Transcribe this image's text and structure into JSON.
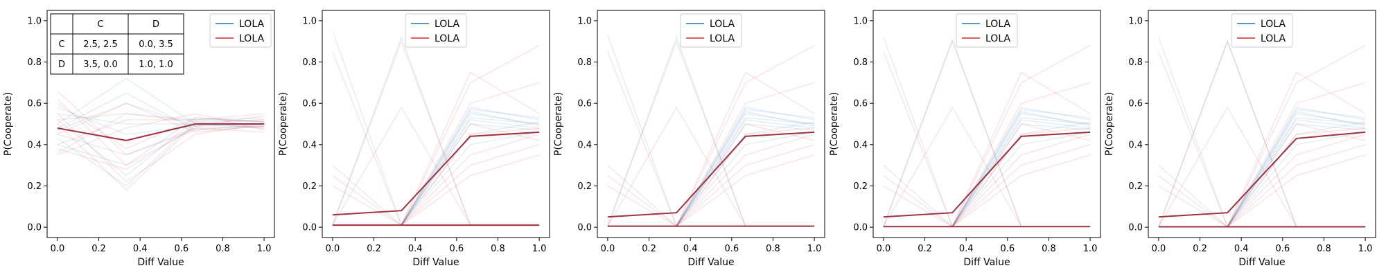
{
  "figure": {
    "panel_count": 5
  },
  "payoff_table": {
    "header": [
      "",
      "C",
      "D"
    ],
    "rows": [
      [
        "C",
        "2.5, 2.5",
        "0.0, 3.5"
      ],
      [
        "D",
        "3.5, 0.0",
        "1.0, 1.0"
      ]
    ]
  },
  "colors": {
    "blue": "#1f77b4",
    "red": "#d62728",
    "mean": "#9e3040",
    "axis": "#000000",
    "background": "#ffffff"
  },
  "chart_data": [
    {
      "type": "line",
      "xlabel": "Diff Value",
      "ylabel": "P(Cooperate)",
      "xlim": [
        -0.05,
        1.05
      ],
      "ylim": [
        -0.05,
        1.05
      ],
      "xticks": [
        "0.0",
        "0.2",
        "0.4",
        "0.6",
        "0.8",
        "1.0"
      ],
      "yticks": [
        "0.0",
        "0.2",
        "0.4",
        "0.6",
        "0.8",
        "1.0"
      ],
      "grid": false,
      "legend": {
        "placement": "top-right",
        "entries": [
          {
            "label": "LOLA",
            "color": "#1f77b4"
          },
          {
            "label": "LOLA",
            "color": "#d62728"
          }
        ]
      },
      "x": [
        0,
        0.333,
        0.667,
        1.0
      ],
      "mean_line": [
        0.48,
        0.42,
        0.5,
        0.5
      ],
      "faint_blue": [
        [
          0.5,
          0.72,
          0.5,
          0.5
        ],
        [
          0.45,
          0.35,
          0.48,
          0.49
        ],
        [
          0.52,
          0.25,
          0.52,
          0.51
        ],
        [
          0.47,
          0.6,
          0.49,
          0.5
        ],
        [
          0.43,
          0.2,
          0.51,
          0.52
        ],
        [
          0.55,
          0.5,
          0.5,
          0.48
        ],
        [
          0.48,
          0.65,
          0.47,
          0.49
        ],
        [
          0.4,
          0.3,
          0.53,
          0.51
        ],
        [
          0.58,
          0.45,
          0.49,
          0.5
        ],
        [
          0.36,
          0.55,
          0.52,
          0.53
        ]
      ],
      "faint_red": [
        [
          0.62,
          0.3,
          0.48,
          0.46
        ],
        [
          0.4,
          0.52,
          0.52,
          0.55
        ],
        [
          0.55,
          0.22,
          0.45,
          0.5
        ],
        [
          0.35,
          0.48,
          0.55,
          0.47
        ],
        [
          0.5,
          0.18,
          0.5,
          0.52
        ],
        [
          0.45,
          0.6,
          0.46,
          0.49
        ],
        [
          0.6,
          0.38,
          0.53,
          0.51
        ],
        [
          0.38,
          0.28,
          0.49,
          0.54
        ],
        [
          0.52,
          0.55,
          0.51,
          0.48
        ],
        [
          0.66,
          0.35,
          0.47,
          0.5
        ]
      ],
      "payoff_table": true
    },
    {
      "type": "line",
      "xlabel": "Diff Value",
      "ylabel": "P(Cooperate)",
      "xlim": [
        -0.05,
        1.05
      ],
      "ylim": [
        -0.05,
        1.05
      ],
      "xticks": [
        "0.0",
        "0.2",
        "0.4",
        "0.6",
        "0.8",
        "1.0"
      ],
      "yticks": [
        "0.0",
        "0.2",
        "0.4",
        "0.6",
        "0.8",
        "1.0"
      ],
      "grid": false,
      "legend": {
        "placement": "top-center",
        "entries": [
          {
            "label": "LOLA",
            "color": "#1f77b4"
          },
          {
            "label": "LOLA",
            "color": "#d62728"
          }
        ]
      },
      "x": [
        0,
        0.333,
        0.667,
        1.0
      ],
      "mean_line": [
        0.06,
        0.08,
        0.44,
        0.46
      ],
      "mean_flat": [
        0.01,
        0.01,
        0.01,
        0.01
      ],
      "faint_blue": [
        [
          0.01,
          0.01,
          0.55,
          0.5
        ],
        [
          0.01,
          0.01,
          0.52,
          0.48
        ],
        [
          0.01,
          0.01,
          0.58,
          0.52
        ],
        [
          0.01,
          0.01,
          0.5,
          0.47
        ],
        [
          0.95,
          0.01,
          0.56,
          0.49
        ],
        [
          0.01,
          0.92,
          0.01,
          0.01
        ],
        [
          0.01,
          0.01,
          0.45,
          0.51
        ],
        [
          0.3,
          0.01,
          0.53,
          0.5
        ],
        [
          0.01,
          0.01,
          0.4,
          0.46
        ],
        [
          0.01,
          0.01,
          0.57,
          0.53
        ]
      ],
      "faint_red": [
        [
          0.01,
          0.01,
          0.75,
          0.55
        ],
        [
          0.85,
          0.01,
          0.7,
          0.88
        ],
        [
          0.01,
          0.9,
          0.01,
          0.01
        ],
        [
          0.01,
          0.01,
          0.35,
          0.45
        ],
        [
          0.2,
          0.01,
          0.5,
          0.42
        ],
        [
          0.01,
          0.58,
          0.01,
          0.01
        ],
        [
          0.01,
          0.01,
          0.3,
          0.4
        ],
        [
          0.01,
          0.01,
          0.45,
          0.48
        ],
        [
          0.25,
          0.01,
          0.6,
          0.7
        ],
        [
          0.01,
          0.01,
          0.25,
          0.35
        ]
      ],
      "payoff_table": false
    },
    {
      "type": "line",
      "xlabel": "Diff Value",
      "ylabel": "P(Cooperate)",
      "xlim": [
        -0.05,
        1.05
      ],
      "ylim": [
        -0.05,
        1.05
      ],
      "xticks": [
        "0.0",
        "0.2",
        "0.4",
        "0.6",
        "0.8",
        "1.0"
      ],
      "yticks": [
        "0.0",
        "0.2",
        "0.4",
        "0.6",
        "0.8",
        "1.0"
      ],
      "grid": false,
      "legend": {
        "placement": "top-center",
        "entries": [
          {
            "label": "LOLA",
            "color": "#1f77b4"
          },
          {
            "label": "LOLA",
            "color": "#d62728"
          }
        ]
      },
      "x": [
        0,
        0.333,
        0.667,
        1.0
      ],
      "mean_line": [
        0.05,
        0.07,
        0.44,
        0.46
      ],
      "mean_flat": [
        0.005,
        0.005,
        0.005,
        0.005
      ],
      "faint_blue": [
        [
          0.005,
          0.005,
          0.55,
          0.5
        ],
        [
          0.005,
          0.005,
          0.52,
          0.48
        ],
        [
          0.005,
          0.005,
          0.58,
          0.52
        ],
        [
          0.005,
          0.005,
          0.5,
          0.47
        ],
        [
          0.93,
          0.005,
          0.56,
          0.49
        ],
        [
          0.005,
          0.92,
          0.005,
          0.005
        ],
        [
          0.005,
          0.005,
          0.45,
          0.51
        ],
        [
          0.3,
          0.005,
          0.53,
          0.5
        ],
        [
          0.005,
          0.005,
          0.4,
          0.46
        ],
        [
          0.005,
          0.005,
          0.57,
          0.53
        ]
      ],
      "faint_red": [
        [
          0.005,
          0.005,
          0.75,
          0.55
        ],
        [
          0.85,
          0.005,
          0.7,
          0.88
        ],
        [
          0.005,
          0.9,
          0.005,
          0.005
        ],
        [
          0.005,
          0.005,
          0.35,
          0.45
        ],
        [
          0.2,
          0.005,
          0.5,
          0.42
        ],
        [
          0.005,
          0.58,
          0.005,
          0.005
        ],
        [
          0.005,
          0.005,
          0.3,
          0.4
        ],
        [
          0.005,
          0.005,
          0.45,
          0.48
        ],
        [
          0.25,
          0.005,
          0.6,
          0.7
        ],
        [
          0.005,
          0.005,
          0.25,
          0.35
        ]
      ],
      "payoff_table": false
    },
    {
      "type": "line",
      "xlabel": "Diff Value",
      "ylabel": "P(Cooperate)",
      "xlim": [
        -0.05,
        1.05
      ],
      "ylim": [
        -0.05,
        1.05
      ],
      "xticks": [
        "0.0",
        "0.2",
        "0.4",
        "0.6",
        "0.8",
        "1.0"
      ],
      "yticks": [
        "0.0",
        "0.2",
        "0.4",
        "0.6",
        "0.8",
        "1.0"
      ],
      "grid": false,
      "legend": {
        "placement": "top-center",
        "entries": [
          {
            "label": "LOLA",
            "color": "#1f77b4"
          },
          {
            "label": "LOLA",
            "color": "#d62728"
          }
        ]
      },
      "x": [
        0,
        0.333,
        0.667,
        1.0
      ],
      "mean_line": [
        0.05,
        0.07,
        0.44,
        0.46
      ],
      "mean_flat": [
        0.003,
        0.003,
        0.003,
        0.003
      ],
      "faint_blue": [
        [
          0.003,
          0.003,
          0.55,
          0.5
        ],
        [
          0.003,
          0.003,
          0.52,
          0.48
        ],
        [
          0.003,
          0.003,
          0.58,
          0.52
        ],
        [
          0.003,
          0.003,
          0.5,
          0.47
        ],
        [
          0.92,
          0.003,
          0.56,
          0.49
        ],
        [
          0.003,
          0.91,
          0.003,
          0.003
        ],
        [
          0.003,
          0.003,
          0.45,
          0.51
        ],
        [
          0.3,
          0.003,
          0.53,
          0.5
        ],
        [
          0.003,
          0.003,
          0.4,
          0.46
        ],
        [
          0.003,
          0.003,
          0.57,
          0.53
        ]
      ],
      "faint_red": [
        [
          0.003,
          0.003,
          0.75,
          0.55
        ],
        [
          0.85,
          0.003,
          0.7,
          0.88
        ],
        [
          0.003,
          0.9,
          0.003,
          0.003
        ],
        [
          0.003,
          0.003,
          0.35,
          0.45
        ],
        [
          0.2,
          0.003,
          0.5,
          0.42
        ],
        [
          0.003,
          0.58,
          0.003,
          0.003
        ],
        [
          0.003,
          0.003,
          0.3,
          0.4
        ],
        [
          0.003,
          0.003,
          0.45,
          0.48
        ],
        [
          0.25,
          0.003,
          0.6,
          0.7
        ],
        [
          0.003,
          0.003,
          0.25,
          0.35
        ]
      ],
      "payoff_table": false
    },
    {
      "type": "line",
      "xlabel": "Diff Value",
      "ylabel": "P(Cooperate)",
      "xlim": [
        -0.05,
        1.05
      ],
      "ylim": [
        -0.05,
        1.05
      ],
      "xticks": [
        "0.0",
        "0.2",
        "0.4",
        "0.6",
        "0.8",
        "1.0"
      ],
      "yticks": [
        "0.0",
        "0.2",
        "0.4",
        "0.6",
        "0.8",
        "1.0"
      ],
      "grid": false,
      "legend": {
        "placement": "top-center",
        "entries": [
          {
            "label": "LOLA",
            "color": "#1f77b4"
          },
          {
            "label": "LOLA",
            "color": "#d62728"
          }
        ]
      },
      "x": [
        0,
        0.333,
        0.667,
        1.0
      ],
      "mean_line": [
        0.05,
        0.07,
        0.43,
        0.46
      ],
      "mean_flat": [
        0.002,
        0.002,
        0.002,
        0.002
      ],
      "faint_blue": [
        [
          0.002,
          0.002,
          0.55,
          0.5
        ],
        [
          0.002,
          0.002,
          0.52,
          0.48
        ],
        [
          0.002,
          0.002,
          0.58,
          0.52
        ],
        [
          0.002,
          0.002,
          0.5,
          0.47
        ],
        [
          0.92,
          0.002,
          0.56,
          0.49
        ],
        [
          0.002,
          0.9,
          0.002,
          0.002
        ],
        [
          0.002,
          0.002,
          0.45,
          0.51
        ],
        [
          0.3,
          0.002,
          0.53,
          0.5
        ],
        [
          0.002,
          0.002,
          0.4,
          0.46
        ],
        [
          0.002,
          0.002,
          0.57,
          0.53
        ]
      ],
      "faint_red": [
        [
          0.002,
          0.002,
          0.75,
          0.55
        ],
        [
          0.85,
          0.002,
          0.7,
          0.88
        ],
        [
          0.002,
          0.9,
          0.002,
          0.002
        ],
        [
          0.002,
          0.002,
          0.35,
          0.45
        ],
        [
          0.2,
          0.002,
          0.5,
          0.42
        ],
        [
          0.002,
          0.58,
          0.002,
          0.002
        ],
        [
          0.002,
          0.002,
          0.3,
          0.4
        ],
        [
          0.002,
          0.002,
          0.45,
          0.48
        ],
        [
          0.25,
          0.002,
          0.6,
          0.7
        ],
        [
          0.002,
          0.002,
          0.25,
          0.35
        ]
      ],
      "payoff_table": false
    }
  ]
}
